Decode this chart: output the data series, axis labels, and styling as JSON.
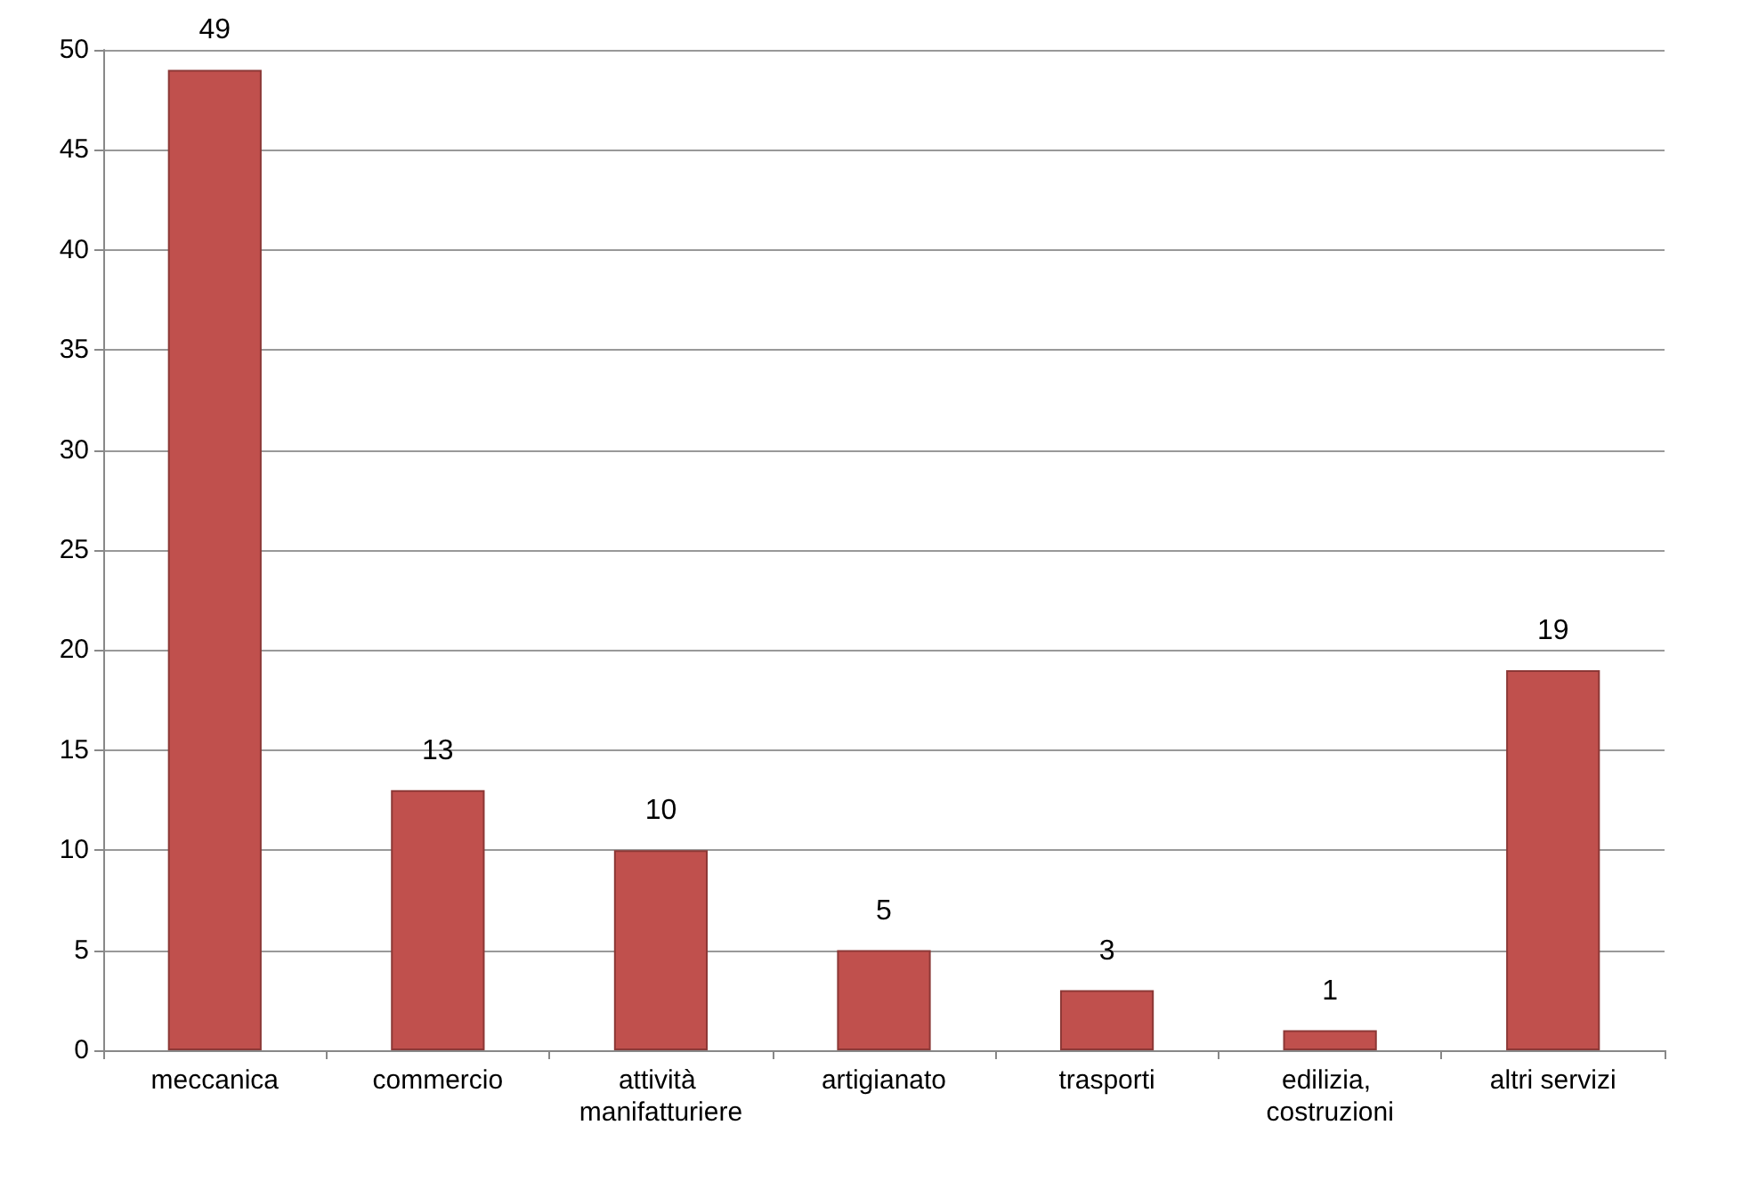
{
  "chart_data": {
    "type": "bar",
    "categories": [
      "meccanica",
      "commercio",
      "attività manifatturiere",
      "artigianato",
      "trasporti",
      "edilizia, costruzioni",
      "altri servizi"
    ],
    "values": [
      49,
      13,
      10,
      5,
      3,
      1,
      19
    ],
    "color": "#c0504d",
    "ylim": [
      0,
      50
    ],
    "yticks": [
      0,
      5,
      10,
      15,
      20,
      25,
      30,
      35,
      40,
      45,
      50
    ],
    "grid": "y",
    "data_labels": true
  }
}
